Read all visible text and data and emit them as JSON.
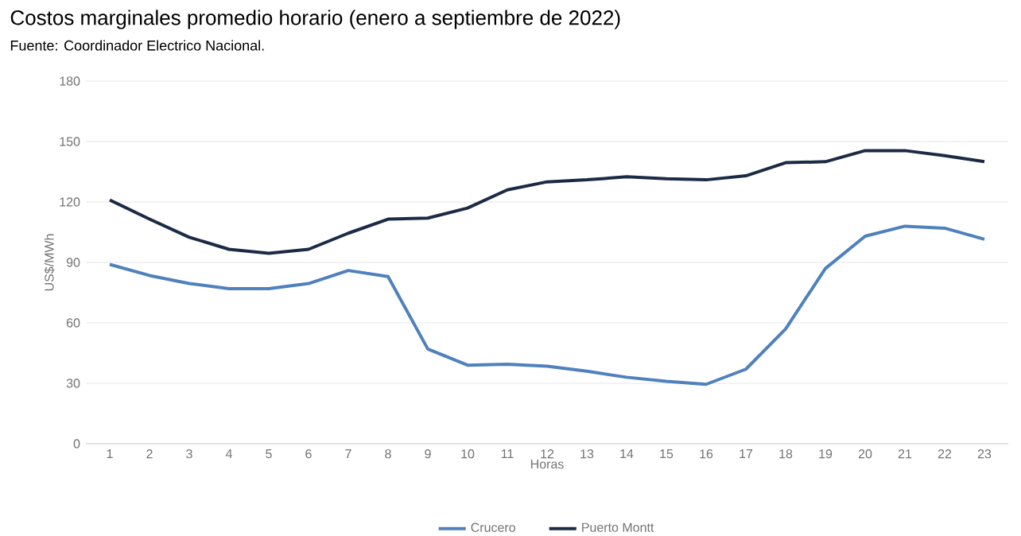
{
  "chart_data": {
    "type": "line",
    "title": "Costos marginales promedio horario (enero a septiembre de 2022)",
    "subtitle": "Fuente: Coordinador Electrico Nacional.",
    "xlabel": "Horas",
    "ylabel": "US$/MWh",
    "categories": [
      "1",
      "2",
      "3",
      "4",
      "5",
      "6",
      "7",
      "8",
      "9",
      "10",
      "11",
      "12",
      "13",
      "14",
      "15",
      "16",
      "17",
      "18",
      "19",
      "20",
      "21",
      "22",
      "23"
    ],
    "series": [
      {
        "name": "Crucero",
        "color": "#4f81bd",
        "values": [
          89,
          83.5,
          79.5,
          77,
          77,
          79.5,
          86,
          83,
          47,
          39,
          39.5,
          38.5,
          36,
          33,
          31,
          29.5,
          37,
          57,
          87,
          103,
          108,
          107,
          101.5
        ]
      },
      {
        "name": "Puerto Montt",
        "color": "#1c2b45",
        "values": [
          121,
          111.5,
          102.5,
          96.5,
          94.5,
          96.5,
          104.5,
          111.5,
          112,
          117,
          126,
          130,
          131,
          132.5,
          131.5,
          131,
          133,
          139.5,
          140,
          145.5,
          145.5,
          143,
          140
        ]
      }
    ],
    "ylim": [
      0,
      180
    ],
    "yticks": [
      0,
      30,
      60,
      90,
      120,
      150,
      180
    ],
    "grid": "y",
    "legend": "bottom",
    "marker": "none",
    "line_style": "solid"
  }
}
